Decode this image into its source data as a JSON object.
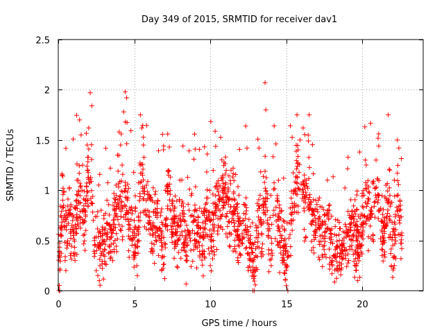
{
  "chart_data": {
    "type": "scatter",
    "title": "Day 349 of 2015, SRMTID for receiver dav1",
    "xlabel": "GPS time / hours",
    "ylabel": "SRMTID / TECUs",
    "xlim": [
      0,
      24
    ],
    "ylim": [
      0,
      2.5
    ],
    "x_ticks": [
      0,
      5,
      10,
      15,
      20
    ],
    "y_ticks": [
      0,
      0.5,
      1,
      1.5,
      2,
      2.5
    ],
    "x_tick_labels": [
      "0",
      "5",
      "10",
      "15",
      "20"
    ],
    "y_tick_labels": [
      "0",
      "0.5",
      "1",
      "1.5",
      "2",
      "2.5"
    ],
    "grid": true,
    "marker": "+",
    "series": [
      {
        "name": "SRMTID",
        "color": "#ff0000",
        "x_range": [
          0,
          22.6
        ],
        "points": [
          [
            0.05,
            0.0
          ],
          [
            0.1,
            0.0
          ],
          [
            0.15,
            0.62
          ],
          [
            0.2,
            0.55
          ],
          [
            0.25,
            1.15
          ],
          [
            0.3,
            1.14
          ],
          [
            0.35,
            0.85
          ],
          [
            0.45,
            0.3
          ],
          [
            0.5,
            0.2
          ],
          [
            0.6,
            0.45
          ],
          [
            0.7,
            0.8
          ],
          [
            0.8,
            0.35
          ],
          [
            0.9,
            0.65
          ],
          [
            1.0,
            0.55
          ],
          [
            1.1,
            0.3
          ],
          [
            1.2,
            0.9
          ],
          [
            1.3,
            1.1
          ],
          [
            1.4,
            1.7
          ],
          [
            1.5,
            1.55
          ],
          [
            1.6,
            1.25
          ],
          [
            1.7,
            0.7
          ],
          [
            1.8,
            0.9
          ],
          [
            1.9,
            1.45
          ],
          [
            2.0,
            1.62
          ],
          [
            2.1,
            1.97
          ],
          [
            2.2,
            1.84
          ],
          [
            2.3,
            0.7
          ],
          [
            2.4,
            0.45
          ],
          [
            2.5,
            0.2
          ],
          [
            2.6,
            0.15
          ],
          [
            2.7,
            0.1
          ],
          [
            2.8,
            0.35
          ],
          [
            2.9,
            0.55
          ],
          [
            3.0,
            0.75
          ],
          [
            3.2,
            0.9
          ],
          [
            3.4,
            0.65
          ],
          [
            3.6,
            0.85
          ],
          [
            3.8,
            1.05
          ],
          [
            3.9,
            1.35
          ],
          [
            4.0,
            1.58
          ],
          [
            4.1,
            1.45
          ],
          [
            4.2,
            1.25
          ],
          [
            4.3,
            1.78
          ],
          [
            4.4,
            1.98
          ],
          [
            4.5,
            1.92
          ],
          [
            4.7,
            0.65
          ],
          [
            4.9,
            0.55
          ],
          [
            5.0,
            0.35
          ],
          [
            5.2,
            0.15
          ],
          [
            5.4,
            1.75
          ],
          [
            5.5,
            1.62
          ],
          [
            5.6,
            1.45
          ],
          [
            5.8,
            1.05
          ],
          [
            6.0,
            0.7
          ],
          [
            6.2,
            0.55
          ],
          [
            6.4,
            0.75
          ],
          [
            6.6,
            0.35
          ],
          [
            6.8,
            0.2
          ],
          [
            7.0,
            0.12
          ],
          [
            7.2,
            1.56
          ],
          [
            7.3,
            1.43
          ],
          [
            7.5,
            0.9
          ],
          [
            7.8,
            0.55
          ],
          [
            8.0,
            1.1
          ],
          [
            8.2,
            1.44
          ],
          [
            8.4,
            0.35
          ],
          [
            8.6,
            0.55
          ],
          [
            8.8,
            0.75
          ],
          [
            9.0,
            0.45
          ],
          [
            9.2,
            0.65
          ],
          [
            9.5,
            0.4
          ],
          [
            9.8,
            1.36
          ],
          [
            10.0,
            0.25
          ],
          [
            10.2,
            0.5
          ],
          [
            10.5,
            0.85
          ],
          [
            10.8,
            1.0
          ],
          [
            11.0,
            1.33
          ],
          [
            11.2,
            0.9
          ],
          [
            11.5,
            1.22
          ],
          [
            11.8,
            0.55
          ],
          [
            12.0,
            0.35
          ],
          [
            12.3,
            0.65
          ],
          [
            12.5,
            0.2
          ],
          [
            12.8,
            0.0
          ],
          [
            12.9,
            0.0
          ],
          [
            13.0,
            0.65
          ],
          [
            13.2,
            1.42
          ],
          [
            13.4,
            0.85
          ],
          [
            13.6,
            2.07
          ],
          [
            13.65,
            1.8
          ],
          [
            13.8,
            0.55
          ],
          [
            14.0,
            0.25
          ],
          [
            14.2,
            1.64
          ],
          [
            14.4,
            0.9
          ],
          [
            14.6,
            0.55
          ],
          [
            14.8,
            0.3
          ],
          [
            15.0,
            0.05
          ],
          [
            15.1,
            0.0
          ],
          [
            15.3,
            0.7
          ],
          [
            15.5,
            1.0
          ],
          [
            15.7,
            1.75
          ],
          [
            15.9,
            1.5
          ],
          [
            16.1,
            1.62
          ],
          [
            16.3,
            1.1
          ],
          [
            16.5,
            1.75
          ],
          [
            16.7,
            0.8
          ],
          [
            16.9,
            0.55
          ],
          [
            17.1,
            0.9
          ],
          [
            17.3,
            0.65
          ],
          [
            17.5,
            0.45
          ],
          [
            17.7,
            1.1
          ],
          [
            17.9,
            0.6
          ],
          [
            18.1,
            0.35
          ],
          [
            18.3,
            0.55
          ],
          [
            18.5,
            0.25
          ],
          [
            18.7,
            0.45
          ],
          [
            18.9,
            0.35
          ],
          [
            19.1,
            0.3
          ],
          [
            19.3,
            0.45
          ],
          [
            19.5,
            0.25
          ],
          [
            19.7,
            0.1
          ],
          [
            19.9,
            0.55
          ],
          [
            20.1,
            0.95
          ],
          [
            20.2,
            1.3
          ],
          [
            20.3,
            1.05
          ],
          [
            20.5,
            0.75
          ],
          [
            20.7,
            0.55
          ],
          [
            20.9,
            1.3
          ],
          [
            21.1,
            0.95
          ],
          [
            21.3,
            0.35
          ],
          [
            21.5,
            0.65
          ],
          [
            21.7,
            1.75
          ],
          [
            21.8,
            1.2
          ],
          [
            22.0,
            0.45
          ],
          [
            22.1,
            0.25
          ],
          [
            22.3,
            1.5
          ],
          [
            22.4,
            1.42
          ],
          [
            22.5,
            0.85
          ],
          [
            22.6,
            0.55
          ]
        ]
      }
    ],
    "density_description": "dense noisy cloud, mostly between 0.2 and 1.0 TECU, many points per time sample"
  }
}
